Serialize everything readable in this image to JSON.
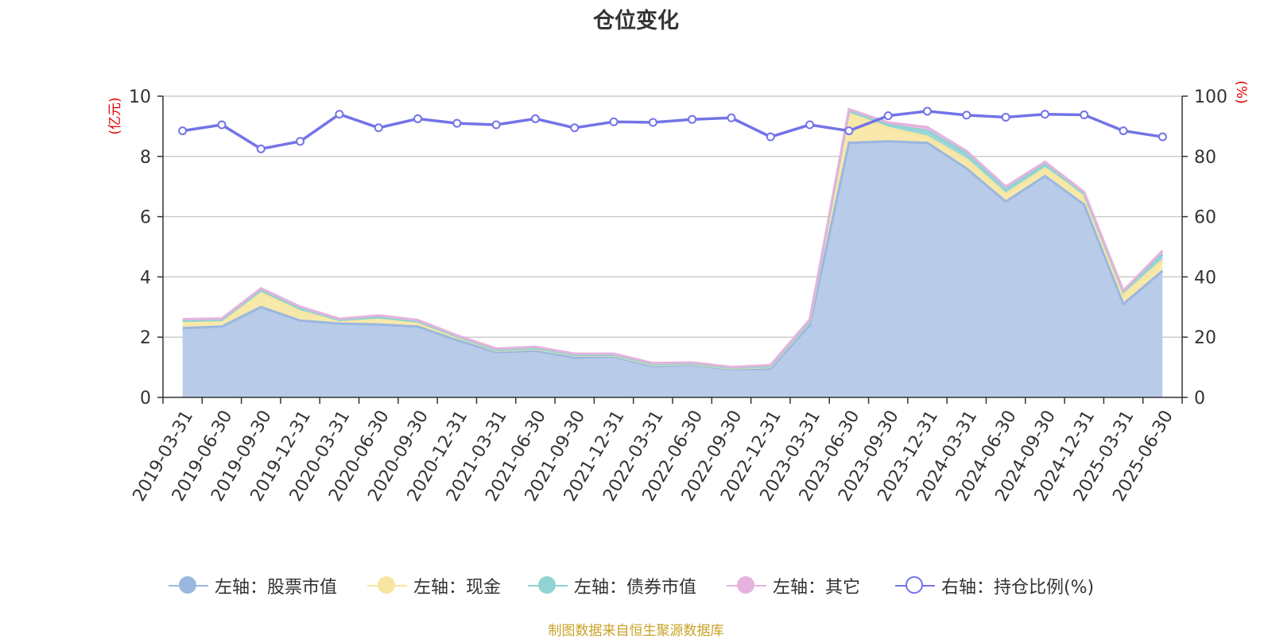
{
  "title": "仓位变化",
  "footer": "制图数据来自恒生聚源数据库",
  "colors": {
    "stock": "#9ab7e0",
    "stock_fill": "#b8cbe9",
    "cash": "#f7e6a0",
    "bond": "#8fd3d3",
    "other": "#e5b3dd",
    "ratio": "#7373e8",
    "axis_label_red": "#e00000",
    "footer": "#c9a227"
  },
  "legend": [
    {
      "key": "stock",
      "label": "左轴：股票市值",
      "icon": "filled-circle-icon"
    },
    {
      "key": "cash",
      "label": "左轴：现金",
      "icon": "filled-circle-icon"
    },
    {
      "key": "bond",
      "label": "左轴：债券市值",
      "icon": "filled-circle-icon"
    },
    {
      "key": "other",
      "label": "左轴：其它",
      "icon": "filled-circle-icon"
    },
    {
      "key": "ratio",
      "label": "右轴：持仓比例(%)",
      "icon": "hollow-circle-icon"
    }
  ],
  "chart_data": {
    "type": "area",
    "title": "仓位变化",
    "y_left_label": "(亿元)",
    "y_right_label": "(%)",
    "y_left_range": [
      0,
      10
    ],
    "y_right_range": [
      0,
      100
    ],
    "y_left_ticks": [
      0,
      2,
      4,
      6,
      8,
      10
    ],
    "y_right_ticks": [
      0,
      20,
      40,
      60,
      80,
      100
    ],
    "grid": true,
    "legend_position": "bottom",
    "categories": [
      "2019-03-31",
      "2019-06-30",
      "2019-09-30",
      "2019-12-31",
      "2020-03-31",
      "2020-06-30",
      "2020-09-30",
      "2020-12-31",
      "2021-03-31",
      "2021-06-30",
      "2021-09-30",
      "2021-12-31",
      "2022-03-31",
      "2022-06-30",
      "2022-09-30",
      "2022-12-31",
      "2023-03-31",
      "2023-06-30",
      "2023-09-30",
      "2023-12-31",
      "2024-03-31",
      "2024-06-30",
      "2024-09-30",
      "2024-12-31",
      "2025-03-31",
      "2025-06-30"
    ],
    "series": [
      {
        "name": "左轴：股票市值",
        "axis": "left",
        "stacked": true,
        "values": [
          2.3,
          2.35,
          3.0,
          2.55,
          2.45,
          2.42,
          2.35,
          1.9,
          1.5,
          1.55,
          1.32,
          1.35,
          1.03,
          1.07,
          0.93,
          0.95,
          2.4,
          8.45,
          8.5,
          8.45,
          7.6,
          6.5,
          7.35,
          6.4,
          3.1,
          4.2
        ]
      },
      {
        "name": "左轴：现金",
        "axis": "left",
        "stacked": true,
        "values": [
          0.22,
          0.2,
          0.5,
          0.3,
          0.1,
          0.22,
          0.15,
          0.1,
          0.05,
          0.06,
          0.07,
          0.04,
          0.05,
          0.03,
          0.03,
          0.06,
          0.12,
          1.0,
          0.45,
          0.2,
          0.3,
          0.25,
          0.25,
          0.3,
          0.3,
          0.35
        ]
      },
      {
        "name": "左轴：债券市值",
        "axis": "left",
        "stacked": true,
        "values": [
          0.02,
          0.02,
          0.05,
          0.1,
          0.02,
          0.02,
          0.02,
          0.02,
          0.02,
          0.02,
          0.02,
          0.02,
          0.02,
          0.02,
          0.02,
          0.02,
          0.02,
          0.05,
          0.1,
          0.2,
          0.2,
          0.15,
          0.15,
          0.05,
          0.1,
          0.2
        ]
      },
      {
        "name": "左轴：其它",
        "axis": "left",
        "stacked": true,
        "values": [
          0.06,
          0.05,
          0.07,
          0.06,
          0.04,
          0.06,
          0.05,
          0.04,
          0.05,
          0.05,
          0.04,
          0.04,
          0.04,
          0.04,
          0.03,
          0.04,
          0.05,
          0.07,
          0.08,
          0.12,
          0.08,
          0.1,
          0.07,
          0.07,
          0.05,
          0.12
        ]
      },
      {
        "name": "右轴：持仓比例(%)",
        "axis": "right",
        "values": [
          88.5,
          90.5,
          82.5,
          85,
          94,
          89.5,
          92.5,
          91,
          90.5,
          92.5,
          89.5,
          91.5,
          91.3,
          92.3,
          92.8,
          86.5,
          90.5,
          88.5,
          93.5,
          95,
          93.7,
          93,
          94,
          93.8,
          88.5,
          86.5
        ]
      }
    ]
  }
}
